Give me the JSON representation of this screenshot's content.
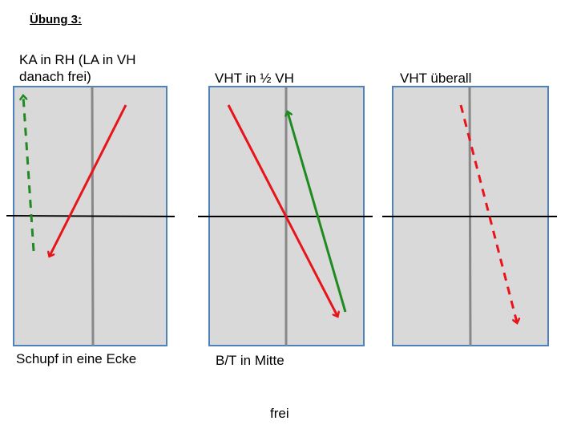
{
  "title": "Übung 3:",
  "panels": [
    {
      "title": "KA in RH (LA in VH danach frei)",
      "caption": "Schupf in eine Ecke"
    },
    {
      "title": "VHT in ½ VH",
      "caption": "B/T  in Mitte"
    },
    {
      "title": "VHT überall",
      "caption": ""
    }
  ],
  "footer": "frei",
  "colors": {
    "table_fill": "#d9d9d9",
    "table_border": "#4f81bd",
    "center_line": "#888888",
    "net_line": "#000000",
    "red_arrow": "#e8141c",
    "green_arrow": "#1f8a1f"
  }
}
